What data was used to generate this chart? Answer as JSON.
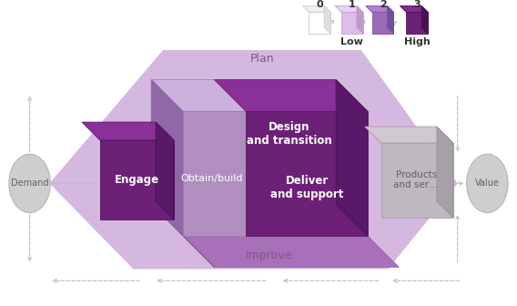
{
  "bg_color": "#ffffff",
  "light_purple": "#d4b8df",
  "mid_purple": "#b08ec0",
  "dark_purple": "#6d2077",
  "deeper_purple": "#4a1055",
  "gray_box": "#c0b8c0",
  "gray_box_top": "#d8d0d8",
  "gray_box_side": "#a8a0a8",
  "ellipse_fill": "#d0cdd0",
  "ellipse_edge": "#b8b5b8",
  "arrow_color": "#c0bcc0",
  "text_purple": "#7a5a8a",
  "text_white": "#ffffff",
  "text_gray": "#707070",
  "labels": {
    "plan": "Plan",
    "design": "Design\nand transition",
    "engage": "Engage",
    "obtain": "Obtain/build",
    "deliver": "Deliver\nand support",
    "products": "Products\nand ser…",
    "improve": "Improve",
    "demand": "Demand",
    "value": "Value"
  },
  "legend_numbers": [
    "0",
    "1",
    "2",
    "3"
  ],
  "legend_labels": [
    "",
    "Low",
    "",
    "High"
  ],
  "legend_face_colors": [
    "#ffffff",
    "#dbbee8",
    "#9b6bb5",
    "#6d2077"
  ],
  "legend_top_colors": [
    "#f0f0f0",
    "#e8d0f8",
    "#b080d0",
    "#8a2898"
  ],
  "legend_side_colors": [
    "#e0e0e0",
    "#c098c8",
    "#7050a0",
    "#4a1055"
  ],
  "legend_edge_colors": [
    "#cccccc",
    "#c0a0d0",
    "#7b4fa0",
    "#4a1055"
  ]
}
